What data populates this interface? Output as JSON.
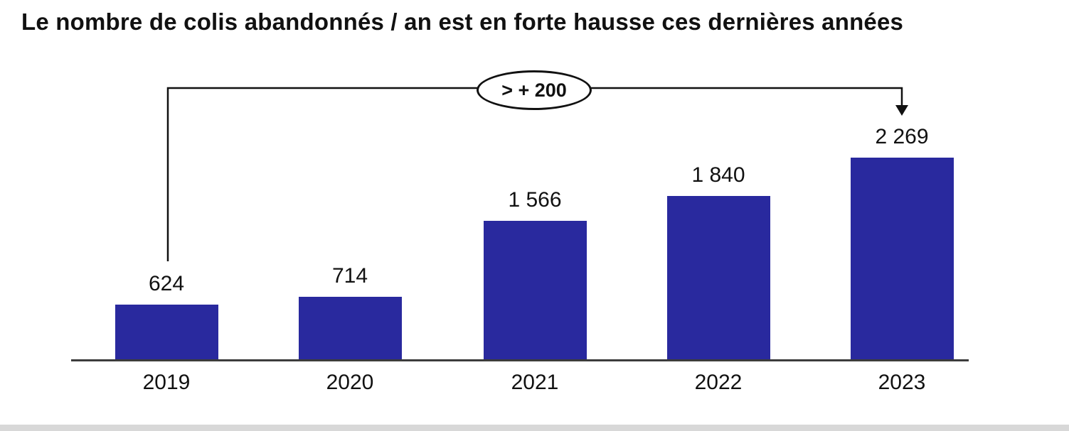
{
  "title": "Le nombre de colis abandonnés / an est en forte hausse ces dernières années",
  "annotation": {
    "label": "> + 200"
  },
  "colors": {
    "bar": "#29299E",
    "text": "#111111",
    "line": "#111111",
    "axis": "#3c3c3c"
  },
  "chart_data": {
    "type": "bar",
    "title": "Le nombre de colis abandonnés / an est en forte hausse ces dernières années",
    "categories": [
      "2019",
      "2020",
      "2021",
      "2022",
      "2023"
    ],
    "values": [
      624,
      714,
      1566,
      1840,
      2269
    ],
    "value_labels": [
      "624",
      "714",
      "1 566",
      "1 840",
      "2 269"
    ],
    "xlabel": "",
    "ylabel": "",
    "ylim": [
      0,
      2400
    ],
    "grid": false,
    "legend": false,
    "annotations": [
      {
        "text": "> + 200",
        "from_category": "2019",
        "to_category": "2023"
      }
    ]
  }
}
